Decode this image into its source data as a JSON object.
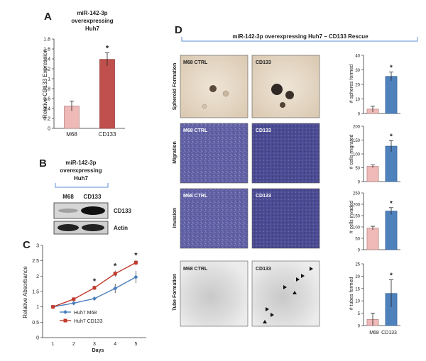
{
  "panels": {
    "A": {
      "letter": "A",
      "title_lines": [
        "miR-142-3p",
        "overexpressing",
        "Huh7"
      ],
      "ylabel": "Relative CD133 Expression"
    },
    "B": {
      "letter": "B",
      "title_lines": [
        "miR-142-3p",
        "overexpressing",
        "Huh7"
      ],
      "lane_labels": [
        "M68",
        "CD133"
      ],
      "band_labels": [
        "CD133",
        "Actin"
      ]
    },
    "C": {
      "letter": "C",
      "ylabel": "Relative Absorbance",
      "xlabel": "Days"
    },
    "D": {
      "letter": "D",
      "header": "miR-142-3p overexpressing Huh7 – CD133 Rescue",
      "rows": [
        {
          "label": "Spheroid Formation",
          "left_tag": "M68 CTRL",
          "right_tag": "CD133",
          "ylabel": "# spheres formed"
        },
        {
          "label": "Migration",
          "left_tag": "M68 CTRL",
          "right_tag": "CD133",
          "ylabel": "# cells migrated"
        },
        {
          "label": "Invasion",
          "left_tag": "M68 CTRL",
          "right_tag": "CD133",
          "ylabel": "# cells invaded"
        },
        {
          "label": "Tube Formation",
          "left_tag": "M68 CTRL",
          "right_tag": "CD133",
          "ylabel": "# tubes formed"
        }
      ],
      "bar_xlabels": [
        "M68",
        "CD133"
      ]
    }
  },
  "colors": {
    "m68_bar": "#eeb9b7",
    "cd133_red_bar": "#c0504d",
    "cd133_blue_bar": "#4f81bd",
    "line_blue": "#4a7ebb",
    "line_red": "#c0392b",
    "header_line": "#5b8fd6",
    "purple_field": "#5a5a9e",
    "sphere_bg": "#e8dccb",
    "tube_bg": "#e6e6e6"
  },
  "chart_data": [
    {
      "id": "A",
      "type": "bar",
      "categories": [
        "M68",
        "CD133"
      ],
      "values": [
        0.45,
        1.39
      ],
      "errors": [
        0.1,
        0.13
      ],
      "significance": [
        "",
        "*"
      ],
      "ylim": [
        0,
        1.8
      ],
      "yticks": [
        0,
        0.2,
        0.4,
        0.6,
        0.8,
        1,
        1.2,
        1.4,
        1.6,
        1.8
      ],
      "ytick_labels": [
        "0",
        "0.2",
        "0.4",
        "0.6",
        "0.8",
        "1",
        "1.2",
        "1.4",
        "1.6",
        "1.8"
      ],
      "xlabel": "",
      "ylabel": "Relative CD133 Expression"
    },
    {
      "id": "C",
      "type": "line",
      "x": [
        1,
        2,
        3,
        4,
        5
      ],
      "xlim": [
        0.5,
        5.5
      ],
      "ylim": [
        0,
        3
      ],
      "yticks": [
        0,
        0.5,
        1,
        1.5,
        2,
        2.5,
        3
      ],
      "ytick_labels": [
        "0",
        "0.5",
        "1",
        "1.5",
        "2",
        "2.5",
        "3"
      ],
      "xtick_labels": [
        "1",
        "2",
        "3",
        "4",
        "5"
      ],
      "series": [
        {
          "name": "Huh7 M68",
          "values": [
            1.0,
            1.12,
            1.27,
            1.6,
            1.97
          ],
          "errors": [
            0.04,
            0.05,
            0.06,
            0.15,
            0.2
          ]
        },
        {
          "name": "Huh7 CD133",
          "values": [
            1.0,
            1.25,
            1.62,
            2.08,
            2.44
          ],
          "errors": [
            0.04,
            0.05,
            0.07,
            0.1,
            0.09
          ]
        }
      ],
      "significance_at_x": [
        3,
        4,
        5
      ],
      "xlabel": "Days",
      "ylabel": "Relative Absorbance"
    },
    {
      "id": "D-spheroid",
      "type": "bar",
      "categories": [
        "M68",
        "CD133"
      ],
      "values": [
        3,
        25.5
      ],
      "errors": [
        2,
        3
      ],
      "significance": [
        "",
        "*"
      ],
      "ylim": [
        0,
        40
      ],
      "yticks": [
        0,
        10,
        20,
        30,
        40
      ],
      "ytick_labels": [
        "0",
        "10",
        "20",
        "30",
        "40"
      ],
      "ylabel": "# spheres formed"
    },
    {
      "id": "D-migration",
      "type": "bar",
      "categories": [
        "M68",
        "CD133"
      ],
      "values": [
        55,
        128
      ],
      "errors": [
        5,
        20
      ],
      "significance": [
        "",
        "*"
      ],
      "ylim": [
        0,
        200
      ],
      "yticks": [
        0,
        50,
        100,
        150,
        200
      ],
      "ytick_labels": [
        "0",
        "50",
        "100",
        "150",
        "200"
      ],
      "ylabel": "# cells migrated"
    },
    {
      "id": "D-invasion",
      "type": "bar",
      "categories": [
        "M68",
        "CD133"
      ],
      "values": [
        95,
        170
      ],
      "errors": [
        8,
        15
      ],
      "significance": [
        "",
        "*"
      ],
      "ylim": [
        0,
        250
      ],
      "yticks": [
        0,
        50,
        100,
        150,
        200,
        250
      ],
      "ytick_labels": [
        "0",
        "50",
        "100",
        "150",
        "200",
        "250"
      ],
      "ylabel": "# cells invaded"
    },
    {
      "id": "D-tube",
      "type": "bar",
      "categories": [
        "M68",
        "CD133"
      ],
      "values": [
        2.5,
        13
      ],
      "errors": [
        2.5,
        5.5
      ],
      "significance": [
        "",
        "*"
      ],
      "ylim": [
        0,
        25
      ],
      "yticks": [
        0,
        5,
        10,
        15,
        20,
        25
      ],
      "ytick_labels": [
        "0",
        "5",
        "10",
        "15",
        "20",
        "25"
      ],
      "ylabel": "# tubes formed"
    }
  ]
}
